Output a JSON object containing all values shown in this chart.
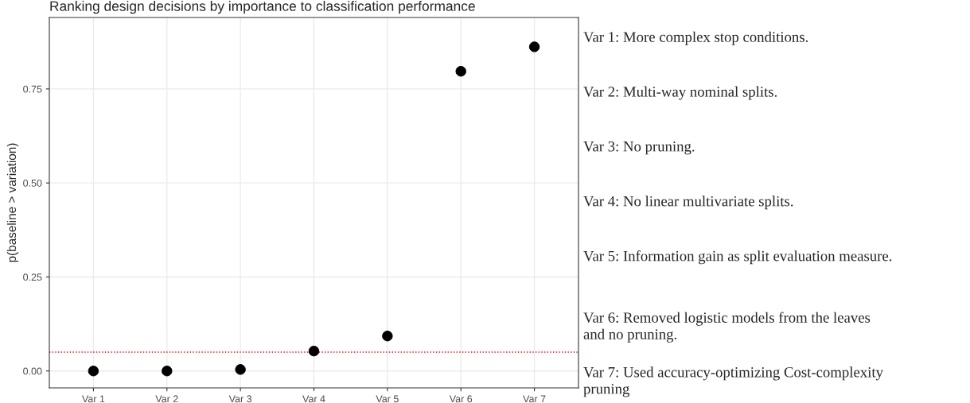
{
  "chart_data": {
    "type": "scatter",
    "title": "Ranking design decisions by importance to classification performance",
    "ylabel": "p(baseline > variation)",
    "categories": [
      "Var 1",
      "Var 2",
      "Var 3",
      "Var 4",
      "Var 5",
      "Var 6",
      "Var 7"
    ],
    "series": [
      {
        "color": "#000000",
        "values": [
          0.0,
          0.0,
          0.004,
          0.053,
          0.093,
          0.797,
          0.862
        ]
      }
    ],
    "marker": "circle",
    "ylim": [
      -0.045,
      0.94
    ],
    "yticks": [
      {
        "value": 0,
        "label": "0.00"
      },
      {
        "value": 0.25,
        "label": "0.25"
      },
      {
        "value": 0.5,
        "label": "0.50"
      },
      {
        "value": 0.75,
        "label": "0.75"
      }
    ],
    "grid": true,
    "ref_lines": [
      {
        "axis": "y",
        "value": 0.05,
        "color": "#ff0000",
        "line_style": "dotted"
      }
    ],
    "annotations": [
      "Var 1: More complex stop conditions.",
      "Var 2: Multi-way nominal splits.",
      "Var 3: No pruning.",
      "Var 4: No linear multivariate splits.",
      "Var 5: Information gain as split evaluation measure.",
      "Var 6: Removed logistic models from the leaves\nand no pruning.",
      "Var 7: Used accuracy-optimizing Cost-complexity\npruning"
    ]
  }
}
